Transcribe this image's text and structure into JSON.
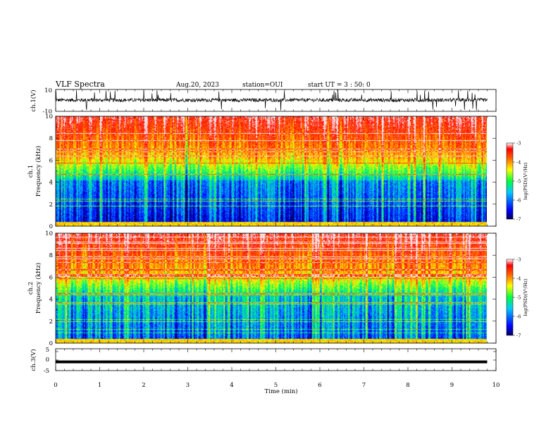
{
  "header": {
    "title": "VLF Spectra",
    "date": "Aug.20, 2023",
    "station": "station=OUI",
    "start_ut": "start UT =  3 : 50: 0"
  },
  "chart_data": [
    {
      "type": "line",
      "panel": "ch1-waveform",
      "ylabel": "ch.1(V)",
      "ylim": [
        -10,
        10
      ],
      "yticks": [
        "10",
        "-10"
      ],
      "xlim": [
        0,
        10
      ],
      "trace": "noisy waveform centred near 0 V with frequent spikes reaching about ±10 V",
      "color": "#000000"
    },
    {
      "type": "heatmap",
      "panel": "ch1-spectrogram",
      "ylabel": "ch.1\nFrequency (kHz)",
      "ylim": [
        0,
        10
      ],
      "yticks": [
        "0",
        "2",
        "4",
        "6",
        "8",
        "10"
      ],
      "xlim": [
        0,
        10
      ],
      "colorbar": {
        "label": "log(PSD)(V²/Hz)",
        "range": [
          -7,
          -3
        ],
        "ticks": [
          "-3",
          "-4",
          "-5",
          "-6",
          "-7"
        ]
      }
    },
    {
      "type": "heatmap",
      "panel": "ch2-spectrogram",
      "ylabel": "ch.2\nFrequency (kHz)",
      "ylim": [
        0,
        10
      ],
      "yticks": [
        "0",
        "2",
        "4",
        "6",
        "8",
        "10"
      ],
      "xlim": [
        0,
        10
      ],
      "colorbar": {
        "label": "log(PSD)(V²/Hz)",
        "range": [
          -7,
          -3
        ],
        "ticks": [
          "-3",
          "-4",
          "-5",
          "-6",
          "-7"
        ]
      }
    },
    {
      "type": "line",
      "panel": "ch3-waveform",
      "ylabel": "ch.3(V)",
      "ylim": [
        -5,
        5
      ],
      "yticks": [
        "5",
        "0",
        "-5"
      ],
      "xlim": [
        0,
        10
      ],
      "x": [
        0,
        9.8
      ],
      "values": [
        -1,
        -1
      ],
      "color": "#000000"
    }
  ],
  "xaxis": {
    "label": "Time (min)",
    "range": [
      0,
      10
    ],
    "ticks": [
      "0",
      "1",
      "2",
      "3",
      "4",
      "5",
      "6",
      "7",
      "8",
      "9",
      "10"
    ]
  },
  "colors": {
    "colormap": [
      "#000080",
      "#0000ff",
      "#00c8ff",
      "#00ff80",
      "#ffff00",
      "#ff8000",
      "#ff0000",
      "#ffffff"
    ]
  }
}
